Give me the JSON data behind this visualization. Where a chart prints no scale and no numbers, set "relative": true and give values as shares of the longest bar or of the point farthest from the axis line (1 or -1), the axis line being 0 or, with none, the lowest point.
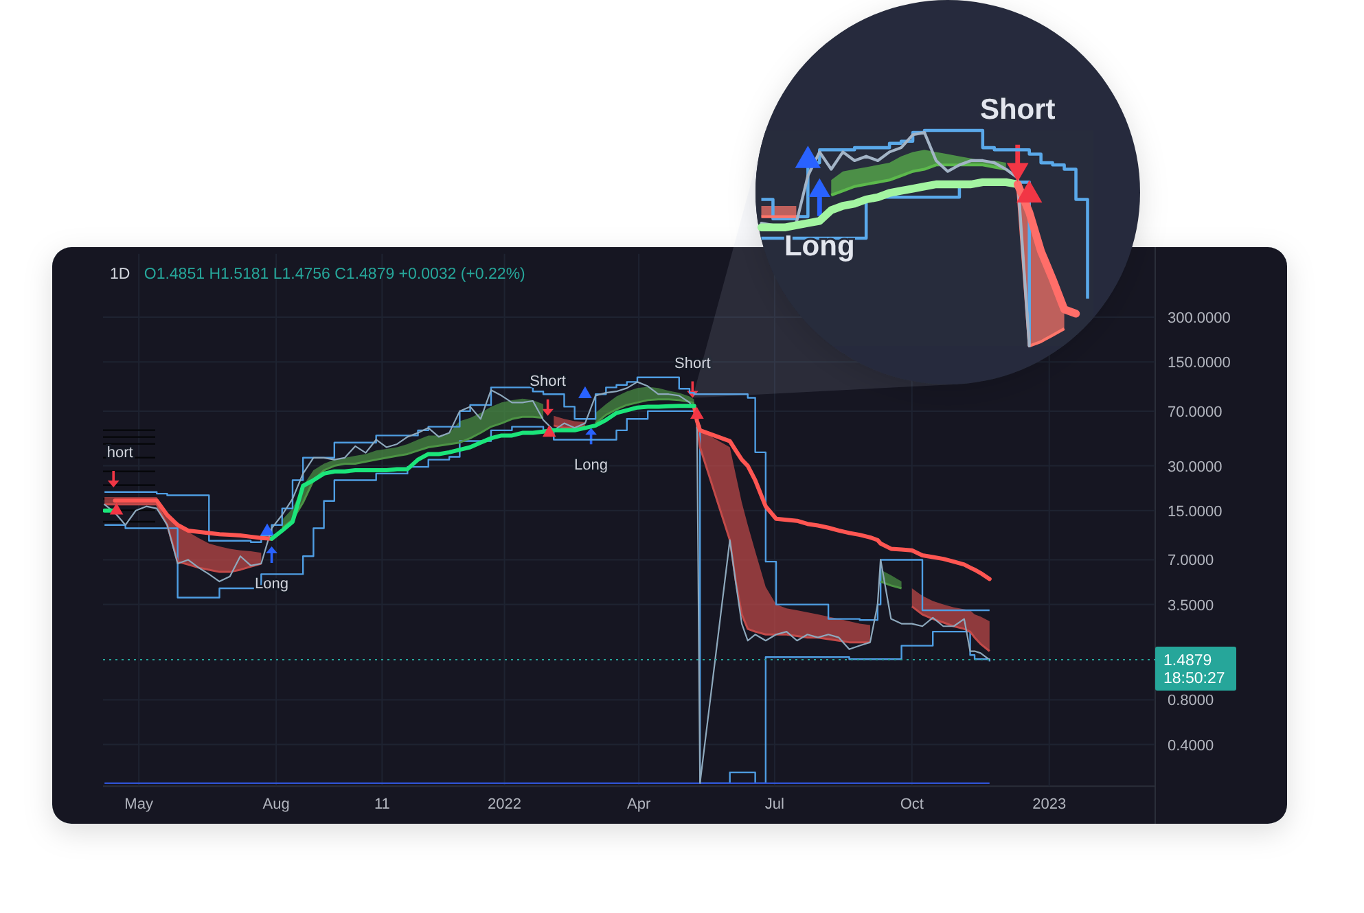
{
  "chart_data": [
    {
      "type": "line",
      "title": "1D",
      "subtitle": "O1.4851 H1.5181 L1.4756 C1.4879 +0.0032 (+0.22%)",
      "x": [
        "2021-04-08",
        "2021-04-15",
        "2021-04-22",
        "2021-04-29",
        "2021-05-06",
        "2021-05-13",
        "2021-05-20",
        "2021-05-27",
        "2021-06-03",
        "2021-06-10",
        "2021-06-17",
        "2021-06-24",
        "2021-07-01",
        "2021-07-08",
        "2021-07-15",
        "2021-07-22",
        "2021-07-29",
        "2021-08-05",
        "2021-08-12",
        "2021-08-19",
        "2021-08-26",
        "2021-09-02",
        "2021-09-09",
        "2021-09-16",
        "2021-09-23",
        "2021-09-30",
        "2021-10-07",
        "2021-10-14",
        "2021-10-21",
        "2021-10-28",
        "2021-11-04",
        "2021-11-11",
        "2021-11-18",
        "2021-11-25",
        "2021-12-02",
        "2021-12-09",
        "2021-12-16",
        "2021-12-23",
        "2021-12-30",
        "2022-01-06",
        "2022-01-13",
        "2022-01-20",
        "2022-01-27",
        "2022-02-03",
        "2022-02-10",
        "2022-02-17",
        "2022-02-24",
        "2022-03-03",
        "2022-03-10",
        "2022-03-17",
        "2022-03-24",
        "2022-03-31",
        "2022-04-07",
        "2022-04-14",
        "2022-04-21",
        "2022-04-28",
        "2022-05-05",
        "2022-05-08",
        "2022-05-10",
        "2022-05-12",
        "2022-06-01",
        "2022-06-05",
        "2022-06-09",
        "2022-06-13",
        "2022-06-18",
        "2022-06-25",
        "2022-07-02",
        "2022-07-09",
        "2022-07-16",
        "2022-07-23",
        "2022-07-30",
        "2022-08-06",
        "2022-08-13",
        "2022-08-20",
        "2022-08-27",
        "2022-09-03",
        "2022-09-08",
        "2022-09-10",
        "2022-09-17",
        "2022-09-24",
        "2022-10-01",
        "2022-10-08",
        "2022-10-15",
        "2022-10-22",
        "2022-10-29",
        "2022-11-05",
        "2022-11-09",
        "2022-11-12",
        "2022-11-16",
        "2022-11-22"
      ],
      "xlim": [
        "2021-04-07",
        "2023-03-13"
      ],
      "xticks": [
        {
          "value": "2021-05-01",
          "label": "May"
        },
        {
          "value": "2021-08-01",
          "label": "Aug"
        },
        {
          "value": "2021-10-11",
          "label": "11"
        },
        {
          "value": "2022-01-01",
          "label": "2022"
        },
        {
          "value": "2022-04-01",
          "label": "Apr"
        },
        {
          "value": "2022-07-01",
          "label": "Jul"
        },
        {
          "value": "2022-10-01",
          "label": "Oct"
        },
        {
          "value": "2023-01-01",
          "label": "2023"
        }
      ],
      "ylim": [
        0.21,
        800
      ],
      "yticks": [
        {
          "value": 300,
          "label": "300.0000"
        },
        {
          "value": 150,
          "label": "150.0000"
        },
        {
          "value": 70,
          "label": "70.0000"
        },
        {
          "value": 30,
          "label": "30.0000"
        },
        {
          "value": 15,
          "label": "15.0000"
        },
        {
          "value": 7,
          "label": "7.0000"
        },
        {
          "value": 3.5,
          "label": "3.5000"
        },
        {
          "value": 0.8,
          "label": "0.8000"
        },
        {
          "value": 0.4,
          "label": "0.4000"
        }
      ],
      "log": true,
      "grid": true,
      "ref_lines": [
        {
          "axis": "y",
          "value": 1.4879,
          "label": "1.4879",
          "color": "#26a69a",
          "line_style": "dotted"
        }
      ],
      "annotations": [
        {
          "text": "hort",
          "x": "2021-04-14",
          "y": 21.5
        },
        {
          "text": "Long",
          "x": "2021-07-29",
          "y": 8.6
        },
        {
          "text": "Short",
          "x": "2022-01-30",
          "y": 65
        },
        {
          "text": "Long",
          "x": "2022-02-28",
          "y": 54
        },
        {
          "text": "Short",
          "x": "2022-05-07",
          "y": 86
        },
        "18:50:27"
      ],
      "series": [
        {
          "color": "#8ea9bd",
          "values": [
            16.5,
            14.5,
            12,
            15,
            16,
            15.5,
            12,
            6.6,
            7,
            6.2,
            5.6,
            5,
            5.4,
            7.4,
            6.4,
            6.6,
            11.4,
            14,
            18,
            26.6,
            34,
            34,
            33,
            34,
            40.7,
            36.7,
            45,
            40,
            42,
            47,
            50,
            54,
            47,
            50,
            70,
            75,
            62,
            97,
            89,
            80,
            80,
            82,
            61,
            52,
            58,
            54,
            58,
            89,
            93,
            95,
            100,
            110,
            103,
            91,
            91,
            89,
            80,
            72,
            56,
            0.22,
            9.5,
            4.9,
            2.6,
            2.0,
            2.2,
            2.0,
            2.2,
            2.3,
            2.0,
            2.2,
            2.1,
            2.2,
            2.1,
            1.75,
            1.85,
            1.95,
            3.5,
            7,
            2.8,
            2.6,
            2.6,
            2.5,
            2.85,
            2.5,
            2.5,
            2.8,
            1.7,
            1.7,
            1.65,
            1.4879
          ]
        },
        {
          "type": "step",
          "color": "#4f9ee3",
          "values": [
            20,
            20,
            20,
            20,
            20,
            19.5,
            19,
            19,
            19,
            19,
            9.4,
            9.4,
            9.4,
            9.4,
            9.2,
            10.2,
            12,
            15.5,
            24,
            34,
            34,
            34,
            43,
            43,
            43,
            43,
            48,
            48,
            48,
            48,
            52,
            55,
            55,
            55,
            70,
            77,
            77,
            101,
            101,
            101,
            101,
            95,
            91,
            91,
            75,
            62,
            62,
            91,
            101,
            105,
            110,
            118,
            118,
            118,
            118,
            99,
            93,
            91,
            91,
            91,
            91,
            91,
            91,
            86,
            37,
            6.8,
            3.5,
            3.5,
            3.5,
            3.5,
            3.5,
            2.8,
            2.8,
            2.8,
            2.75,
            2.75,
            3.5,
            7,
            7,
            7,
            7,
            3.2,
            3.2,
            3.2,
            3.2,
            3.2,
            3.2,
            3.2,
            3.2,
            3.2
          ]
        },
        {
          "type": "step",
          "color": "#4f9ee3",
          "values": [
            12,
            12,
            11.4,
            11.4,
            11.4,
            11.4,
            11.4,
            3.9,
            3.9,
            3.9,
            3.9,
            4.5,
            4.5,
            4.5,
            4.5,
            5.6,
            5.6,
            5.6,
            5.6,
            7.4,
            11.4,
            17.4,
            24,
            24,
            24,
            24,
            26.6,
            26.6,
            26.6,
            29.5,
            29.5,
            33,
            33,
            34.5,
            44,
            44,
            44,
            52,
            52,
            55,
            55,
            55,
            52,
            45,
            45,
            45,
            45,
            45,
            45,
            52,
            62,
            62,
            70,
            70,
            70,
            70,
            70,
            70,
            56,
            0.22,
            0.26,
            0.26,
            0.26,
            0.26,
            0.22,
            1.55,
            1.55,
            1.55,
            1.55,
            1.55,
            1.55,
            1.55,
            1.55,
            1.5,
            1.5,
            1.5,
            1.5,
            1.5,
            1.5,
            1.85,
            1.85,
            1.85,
            2.3,
            2.3,
            2.3,
            2.3,
            1.6,
            1.5,
            1.5,
            1.45
          ]
        },
        {
          "type": "step",
          "color": "#2f52d1",
          "x": [
            "2021-04-08",
            "2022-11-22"
          ],
          "values": [
            0.22,
            0.22
          ]
        },
        {
          "color": "#4c9344",
          "values": [
            null,
            null,
            null,
            null,
            null,
            null,
            null,
            null,
            null,
            null,
            null,
            null,
            null,
            null,
            null,
            null,
            null,
            11.5,
            13,
            17,
            24,
            28,
            30,
            31,
            31,
            32,
            33,
            34,
            35,
            36,
            38,
            40,
            41,
            42,
            43,
            46,
            50,
            55,
            58,
            62,
            64,
            64,
            63,
            null,
            null,
            null,
            null,
            58,
            66,
            72,
            77,
            80,
            83,
            84,
            84,
            83,
            81,
            79,
            null,
            null,
            null,
            null,
            null,
            null,
            null,
            null,
            null,
            null,
            null,
            null,
            null,
            null,
            null,
            null,
            null,
            null,
            null,
            null,
            null,
            null,
            null,
            null,
            null,
            null,
            null,
            null,
            null,
            null,
            null,
            null
          ],
          "lower": [
            null,
            null,
            null,
            null,
            null,
            null,
            null,
            null,
            null,
            null,
            null,
            null,
            null,
            null,
            null,
            null,
            null,
            11.5,
            13,
            17,
            24,
            28,
            30,
            31,
            31,
            32,
            33,
            34,
            35,
            36,
            38,
            40,
            41,
            42,
            43,
            46,
            50,
            55,
            58,
            62,
            64,
            64,
            63,
            null,
            null,
            null,
            null,
            58,
            66,
            72,
            77,
            80,
            83,
            84,
            84,
            83,
            81,
            79,
            null,
            null,
            null,
            null,
            null,
            null,
            null,
            null,
            null,
            null,
            null,
            null,
            null,
            null,
            null,
            null,
            null,
            null,
            null,
            null,
            null,
            null,
            null,
            null,
            null,
            null,
            null,
            null,
            null,
            null,
            null,
            null
          ],
          "upper": [
            null,
            null,
            null,
            null,
            null,
            null,
            null,
            null,
            null,
            null,
            null,
            null,
            null,
            null,
            null,
            null,
            null,
            13,
            15.5,
            22,
            28,
            31,
            33,
            34,
            35,
            36,
            38,
            39,
            40,
            42,
            45,
            48,
            48,
            50,
            60,
            63,
            68,
            75,
            80,
            83,
            85,
            83,
            78,
            null,
            null,
            null,
            null,
            68,
            78,
            88,
            95,
            100,
            102,
            100,
            96,
            93,
            88,
            84,
            null,
            null,
            null,
            null,
            null,
            null,
            null,
            null,
            null,
            null,
            null,
            null,
            null,
            null,
            null,
            null,
            null,
            null,
            null,
            null,
            null,
            null,
            null,
            null,
            null,
            null,
            null,
            null,
            null,
            null,
            null,
            null
          ]
        },
        {
          "color": "#4c9344",
          "x": [
            "2022-09-10",
            "2022-09-17",
            "2022-09-24"
          ],
          "values": [
            5.0,
            4.7,
            4.5
          ],
          "lower": [
            5.0,
            4.7,
            4.5
          ],
          "upper": [
            6.0,
            5.5,
            5.0
          ]
        },
        {
          "color": "#c34a49",
          "values": [
            16.5,
            16.5,
            16.5,
            16.5,
            16.5,
            16.5,
            12,
            6.8,
            6.5,
            6.2,
            6,
            5.8,
            5.8,
            6,
            6.3,
            6.6,
            null,
            null,
            null,
            null,
            null,
            null,
            null,
            null,
            null,
            null,
            null,
            null,
            null,
            null,
            null,
            null,
            null,
            null,
            null,
            null,
            null,
            null,
            null,
            null,
            null,
            null,
            null,
            56,
            54,
            54,
            55,
            null,
            null,
            null,
            null,
            null,
            null,
            null,
            null,
            null,
            null,
            null,
            55,
            40,
            9.5,
            5,
            3,
            2.4,
            2.3,
            2.2,
            2.2,
            2.2,
            2.15,
            2.1,
            2.1,
            2.05,
            2.0,
            1.95,
            1.95,
            1.95,
            null,
            null,
            null,
            null,
            3.4,
            3.0,
            2.8,
            2.65,
            2.5,
            2.4,
            2.3,
            2.1,
            1.9,
            1.7
          ],
          "lower": [
            16.5,
            16.5,
            16.5,
            16.5,
            16.5,
            16.5,
            12,
            6.8,
            6.5,
            6.2,
            6,
            5.8,
            5.8,
            6,
            6.3,
            6.6,
            null,
            null,
            null,
            null,
            null,
            null,
            null,
            null,
            null,
            null,
            null,
            null,
            null,
            null,
            null,
            null,
            null,
            null,
            null,
            null,
            null,
            null,
            null,
            null,
            null,
            null,
            null,
            56,
            54,
            54,
            55,
            null,
            null,
            null,
            null,
            null,
            null,
            null,
            null,
            null,
            null,
            null,
            55,
            40,
            9.5,
            5,
            3,
            2.4,
            2.3,
            2.2,
            2.2,
            2.2,
            2.15,
            2.1,
            2.1,
            2.05,
            2.0,
            1.95,
            1.95,
            1.95,
            null,
            null,
            null,
            null,
            3.4,
            3.0,
            2.8,
            2.65,
            2.5,
            2.4,
            2.3,
            2.1,
            1.9,
            1.7
          ],
          "upper": [
            18.5,
            18.5,
            18.5,
            18.5,
            18.5,
            18.5,
            14,
            12,
            10.8,
            9.8,
            9,
            8.6,
            8.3,
            8.1,
            8,
            7.8,
            null,
            null,
            null,
            null,
            null,
            null,
            null,
            null,
            null,
            null,
            null,
            null,
            null,
            null,
            null,
            null,
            null,
            null,
            null,
            null,
            null,
            null,
            null,
            null,
            null,
            null,
            null,
            65,
            62,
            60,
            59,
            null,
            null,
            null,
            null,
            null,
            null,
            null,
            null,
            null,
            null,
            null,
            62,
            52,
            40,
            26,
            17,
            12,
            8,
            4.6,
            3.5,
            3.3,
            3.2,
            3.1,
            3.0,
            2.9,
            2.8,
            2.7,
            2.6,
            2.55,
            null,
            null,
            null,
            null,
            4.5,
            4.0,
            3.7,
            3.5,
            3.35,
            3.25,
            3.2,
            3.0,
            2.9,
            2.7
          ]
        },
        {
          "color": "#ff5652",
          "values": [
            null,
            17.5,
            17.5,
            17.5,
            17.5,
            17.5,
            14,
            12,
            11,
            10.8,
            10.6,
            10.4,
            10.3,
            10.2,
            10,
            9.8,
            9.7,
            null,
            null,
            null,
            null,
            null,
            null,
            null,
            null,
            null,
            null,
            null,
            null,
            null,
            null,
            null,
            null,
            null,
            null,
            null,
            null,
            null,
            null,
            null,
            null,
            null,
            null,
            null,
            null,
            null,
            null,
            null,
            null,
            null,
            null,
            null,
            null,
            null,
            null,
            null,
            null,
            76,
            60,
            52,
            44,
            38,
            33,
            30,
            24,
            16,
            13.2,
            13,
            12.8,
            12.2,
            11.9,
            11.5,
            11,
            10.6,
            10.3,
            9.9,
            9.5,
            9.0,
            8.3,
            8.2,
            8.1,
            7.5,
            7.3,
            7.1,
            6.8,
            6.5,
            6.2,
            6.0,
            5.7,
            5.2
          ]
        },
        {
          "color": "#1be57a",
          "values": [
            15,
            15,
            null,
            null,
            null,
            null,
            null,
            null,
            null,
            null,
            null,
            null,
            null,
            null,
            null,
            null,
            9.7,
            11,
            12.6,
            22,
            24,
            26.6,
            27.5,
            27.5,
            28,
            28,
            28,
            28,
            28.5,
            28.5,
            33,
            36,
            36,
            37,
            38.5,
            40,
            43,
            46,
            48,
            48,
            50,
            50,
            51,
            52,
            52,
            52,
            54,
            56,
            61,
            68,
            71,
            74,
            75,
            75,
            75.5,
            76,
            76,
            76,
            null,
            null,
            null,
            null,
            null,
            null,
            null,
            null,
            null,
            null,
            null,
            null,
            null,
            null,
            null,
            null,
            null,
            null,
            null,
            null,
            null,
            null,
            null,
            null,
            null,
            null,
            null,
            null,
            null,
            null,
            null,
            null
          ]
        },
        {
          "type": "scatter",
          "marker": "triangle",
          "color": "#f23645",
          "x": [
            "2021-04-16",
            "2022-01-31",
            "2022-05-10"
          ],
          "values": [
            15,
            50,
            66
          ]
        },
        {
          "type": "scatter",
          "marker": "triangle",
          "color": "#2962ff",
          "x": [
            "2021-07-26",
            "2022-02-24"
          ],
          "values": [
            10.9,
            91
          ]
        }
      ]
    },
    {
      "type": "line",
      "relative": true,
      "categories": [
        null,
        null,
        null,
        null,
        null,
        null,
        null,
        null,
        null,
        null,
        null,
        null,
        null,
        null,
        null,
        null,
        null,
        null,
        null,
        null,
        null,
        null,
        null,
        null,
        null,
        null,
        null,
        null,
        null
      ],
      "series": [
        {
          "color": "#a3b4c6",
          "values": [
            0.57,
            0.56,
            0.55,
            0.57,
            0.79,
            0.9,
            0.82,
            0.9,
            0.86,
            0.88,
            0.86,
            0.9,
            0.92,
            0.98,
            0.99,
            0.86,
            0.81,
            0.84,
            0.86,
            0.86,
            0.85,
            0.82,
            0.78,
            0,
            null,
            null,
            null,
            null,
            null
          ]
        },
        {
          "type": "step",
          "color": "#5aa9ea",
          "values": [
            0.68,
            0.59,
            0.59,
            0.6,
            0.85,
            0.91,
            0.91,
            0.91,
            0.92,
            0.92,
            0.92,
            0.94,
            0.95,
            0.99,
            1,
            1,
            1,
            1,
            1,
            0.92,
            0.91,
            0.91,
            0.91,
            0.89,
            0.85,
            0.84,
            0.82,
            0.68,
            0.22
          ]
        },
        {
          "type": "step",
          "color": "#5aa9ea",
          "values": [
            0.5,
            0.5,
            0.5,
            0.5,
            0.5,
            0.5,
            0.5,
            0.5,
            0.5,
            0.69,
            0.69,
            0.69,
            0.69,
            0.69,
            0.69,
            0.69,
            0.69,
            0.76,
            0.76,
            0.76,
            0.76,
            0.76,
            0.76,
            0,
            null,
            null,
            null,
            null,
            null
          ]
        },
        {
          "color": "#5cb94c",
          "values": [
            null,
            null,
            null,
            null,
            null,
            null,
            0.7,
            0.72,
            0.74,
            0.75,
            0.76,
            0.77,
            0.79,
            0.81,
            0.82,
            0.84,
            0.84,
            0.84,
            0.84,
            0.84,
            0.83,
            0.82,
            null,
            null,
            null,
            null,
            null,
            null,
            null
          ],
          "lower": [
            null,
            null,
            null,
            null,
            null,
            null,
            0.7,
            0.72,
            0.74,
            0.75,
            0.76,
            0.77,
            0.79,
            0.81,
            0.82,
            0.84,
            0.84,
            0.84,
            0.84,
            0.84,
            0.83,
            0.82,
            null,
            null,
            null,
            null,
            null,
            null,
            null
          ],
          "upper": [
            null,
            null,
            null,
            null,
            null,
            null,
            0.77,
            0.81,
            0.82,
            0.83,
            0.84,
            0.85,
            0.88,
            0.9,
            0.91,
            0.9,
            0.89,
            0.88,
            0.87,
            0.86,
            0.86,
            0.85,
            null,
            null,
            null,
            null,
            null,
            null,
            null
          ]
        },
        {
          "color": "#ff766a",
          "values": [
            0.6,
            0.6,
            0.6,
            0.6,
            null,
            null,
            null,
            null,
            null,
            null,
            null,
            null,
            null,
            null,
            null,
            null,
            null,
            null,
            null,
            null,
            null,
            null,
            0.74,
            0,
            0.02,
            0.05,
            0.08,
            null,
            null
          ],
          "lower": [
            0.6,
            0.6,
            0.6,
            0.6,
            null,
            null,
            null,
            null,
            null,
            null,
            null,
            null,
            null,
            null,
            null,
            null,
            null,
            null,
            null,
            null,
            null,
            null,
            0.74,
            0,
            0.02,
            0.05,
            0.08,
            null,
            null
          ],
          "upper": [
            0.65,
            0.65,
            0.65,
            0.65,
            null,
            null,
            null,
            null,
            null,
            null,
            null,
            null,
            null,
            null,
            null,
            null,
            null,
            null,
            null,
            null,
            null,
            null,
            0.75,
            0.62,
            0.43,
            0.31,
            0.16,
            null,
            null
          ]
        },
        {
          "color": "#a3f5a1",
          "values": [
            0.55,
            0.55,
            0.55,
            0.56,
            0.57,
            0.58,
            0.63,
            0.65,
            0.66,
            0.68,
            0.69,
            0.71,
            0.72,
            0.73,
            0.74,
            0.75,
            0.75,
            0.75,
            0.75,
            0.76,
            0.76,
            0.76,
            0.75,
            null,
            null,
            null,
            null,
            null,
            null
          ]
        },
        {
          "color": "#ff6e69",
          "values": [
            null,
            null,
            null,
            null,
            null,
            null,
            null,
            null,
            null,
            null,
            null,
            null,
            null,
            null,
            null,
            null,
            null,
            null,
            null,
            null,
            null,
            null,
            0.75,
            0.62,
            0.44,
            0.31,
            0.17,
            0.15,
            null
          ]
        },
        {
          "marker": "triangle",
          "color": "#f23645",
          "values": [
            null,
            null,
            null,
            null,
            null,
            null,
            null,
            null,
            null,
            null,
            null,
            null,
            null,
            null,
            null,
            null,
            null,
            null,
            null,
            null,
            null,
            null,
            null,
            0.7,
            null,
            null,
            null,
            null,
            null
          ]
        },
        {
          "marker": "triangle",
          "color": "#2962ff",
          "values": [
            null,
            null,
            null,
            null,
            0.86,
            null,
            null,
            null,
            null,
            null,
            null,
            null,
            null,
            null,
            null,
            null,
            null,
            null,
            null,
            null,
            null,
            null,
            null,
            null,
            null,
            null,
            null,
            null,
            null
          ]
        },
        {
          "name": "Long",
          "marker": "triangle",
          "color": "#2962ff",
          "values": [
            null,
            null,
            null,
            null,
            null,
            0.72,
            null,
            null,
            null,
            null,
            null,
            null,
            null,
            null,
            null,
            null,
            null,
            null,
            null,
            null,
            null,
            null,
            null,
            null,
            null,
            null,
            null,
            null,
            null
          ]
        },
        {
          "name": "Short",
          "marker": "triangle",
          "color": "#f23645",
          "values": [
            null,
            null,
            null,
            null,
            null,
            null,
            null,
            null,
            null,
            null,
            null,
            null,
            null,
            null,
            null,
            null,
            null,
            null,
            null,
            null,
            null,
            null,
            0.82,
            null,
            null,
            null,
            null,
            null,
            null
          ]
        }
      ]
    }
  ]
}
